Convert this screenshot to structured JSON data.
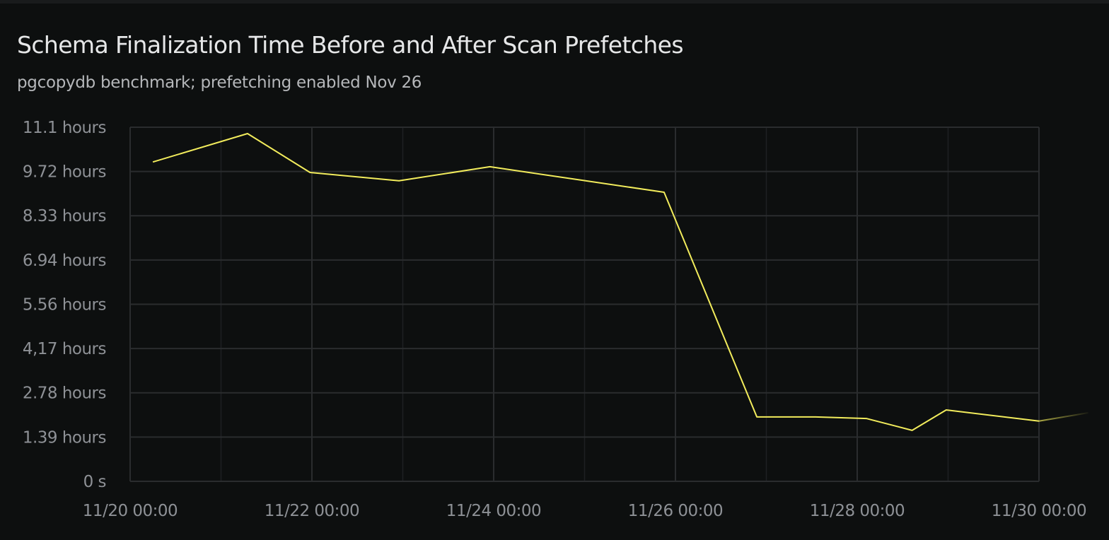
{
  "header": {
    "title": "Schema Finalization Time Before and After Scan Prefetches",
    "subtitle": "pgcopydb benchmark; prefetching enabled Nov 26"
  },
  "chart_data": {
    "type": "line",
    "title": "Schema Finalization Time Before and After Scan Prefetches",
    "subtitle": "pgcopydb benchmark; prefetching enabled Nov 26",
    "xlabel": "",
    "ylabel": "",
    "ylim_hours": [
      0,
      11.11
    ],
    "xlim": [
      "2024-11-20T00:00",
      "2024-11-30T00:00"
    ],
    "y_tick_values_hours": [
      0,
      1.389,
      2.778,
      4.167,
      5.556,
      6.944,
      8.333,
      9.722,
      11.111
    ],
    "y_tick_labels": [
      "0 s",
      "1.39 hours",
      "2.78 hours",
      "4,17 hours",
      "5.56 hours",
      "6.94 hours",
      "8.33 hours",
      "9.72 hours",
      "11.1 hours"
    ],
    "x_tick_labels": [
      "11/20 00:00",
      "11/22 00:00",
      "11/24 00:00",
      "11/26 00:00",
      "11/28 00:00",
      "11/30 00:00"
    ],
    "grid": true,
    "line_color": "#f2ec5c",
    "series": [
      {
        "x": [
          "11/20 06:00",
          "11/21 07:00",
          "11/21 23:30",
          "11/22 23:00",
          "11/23 23:00",
          "11/25 21:00",
          "11/26 21:30",
          "11/27 13:00",
          "11/28 02:30",
          "11/28 14:30",
          "11/28 23:30",
          "11/30 00:00",
          "11/30 13:00"
        ],
        "values_hours": [
          10.02,
          10.91,
          9.69,
          9.43,
          9.87,
          9.07,
          2.02,
          2.02,
          1.97,
          1.6,
          2.24,
          1.89,
          2.15
        ]
      }
    ]
  }
}
